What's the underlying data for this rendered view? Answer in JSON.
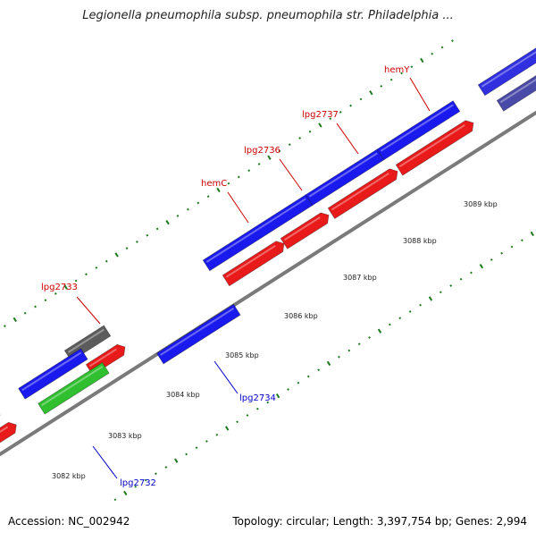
{
  "header": {
    "title": "Legionella pneumophila subsp. pneumophila str. Philadelphia ..."
  },
  "footer": {
    "accession": "Accession: NC_002942",
    "summary": "Topology: circular; Length: 3,397,754 bp; Genes: 2,994"
  },
  "map": {
    "colors": {
      "backbone": "#7a7a7a",
      "forward_cds": "#1a1aee",
      "forward_rna": "#e81a1a",
      "reverse_cds": "#1a1aee",
      "pseudo": "#5c5c5c",
      "other": "#2fbf2f",
      "tick": "#1f7a1f",
      "label_forward": "#cc0000",
      "label_reverse": "#0000cc"
    },
    "scale_ticks": [
      {
        "label": "3082 kbp"
      },
      {
        "label": "3083 kbp"
      },
      {
        "label": "3084 kbp"
      },
      {
        "label": "3085 kbp"
      },
      {
        "label": "3086 kbp"
      },
      {
        "label": "3087 kbp"
      },
      {
        "label": "3088 kbp"
      },
      {
        "label": "3089 kbp"
      }
    ],
    "gene_labels": [
      {
        "name": "lpg2733",
        "strand": "forward"
      },
      {
        "name": "hemC",
        "strand": "forward"
      },
      {
        "name": "lpg2736",
        "strand": "forward"
      },
      {
        "name": "lpg2737",
        "strand": "forward"
      },
      {
        "name": "hemY",
        "strand": "forward"
      },
      {
        "name": "lpg2734",
        "strand": "reverse"
      },
      {
        "name": "lpg2732",
        "strand": "reverse"
      }
    ]
  }
}
